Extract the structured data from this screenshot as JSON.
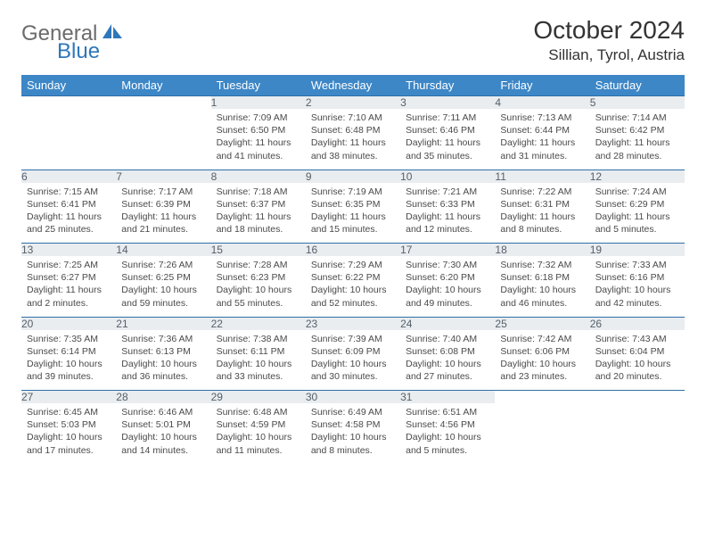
{
  "brand": {
    "general": "General",
    "blue": "Blue"
  },
  "title": "October 2024",
  "location": "Sillian, Tyrol, Austria",
  "colors": {
    "header_bg": "#3d87c7",
    "header_text": "#ffffff",
    "rule": "#2f6fa8",
    "daynum_bg": "#e9edf0",
    "daynum_text": "#56606a",
    "body_text": "#4a4a4a",
    "logo_gray": "#6b6b6b",
    "logo_blue": "#2f77b9"
  },
  "fonts": {
    "title_pt": 28,
    "location_pt": 17,
    "weekday_pt": 13,
    "daynum_pt": 12,
    "body_pt": 10.5
  },
  "weekdays": [
    "Sunday",
    "Monday",
    "Tuesday",
    "Wednesday",
    "Thursday",
    "Friday",
    "Saturday"
  ],
  "weeks": [
    [
      null,
      null,
      {
        "n": "1",
        "sr": "7:09 AM",
        "ss": "6:50 PM",
        "dl": "11 hours and 41 minutes."
      },
      {
        "n": "2",
        "sr": "7:10 AM",
        "ss": "6:48 PM",
        "dl": "11 hours and 38 minutes."
      },
      {
        "n": "3",
        "sr": "7:11 AM",
        "ss": "6:46 PM",
        "dl": "11 hours and 35 minutes."
      },
      {
        "n": "4",
        "sr": "7:13 AM",
        "ss": "6:44 PM",
        "dl": "11 hours and 31 minutes."
      },
      {
        "n": "5",
        "sr": "7:14 AM",
        "ss": "6:42 PM",
        "dl": "11 hours and 28 minutes."
      }
    ],
    [
      {
        "n": "6",
        "sr": "7:15 AM",
        "ss": "6:41 PM",
        "dl": "11 hours and 25 minutes."
      },
      {
        "n": "7",
        "sr": "7:17 AM",
        "ss": "6:39 PM",
        "dl": "11 hours and 21 minutes."
      },
      {
        "n": "8",
        "sr": "7:18 AM",
        "ss": "6:37 PM",
        "dl": "11 hours and 18 minutes."
      },
      {
        "n": "9",
        "sr": "7:19 AM",
        "ss": "6:35 PM",
        "dl": "11 hours and 15 minutes."
      },
      {
        "n": "10",
        "sr": "7:21 AM",
        "ss": "6:33 PM",
        "dl": "11 hours and 12 minutes."
      },
      {
        "n": "11",
        "sr": "7:22 AM",
        "ss": "6:31 PM",
        "dl": "11 hours and 8 minutes."
      },
      {
        "n": "12",
        "sr": "7:24 AM",
        "ss": "6:29 PM",
        "dl": "11 hours and 5 minutes."
      }
    ],
    [
      {
        "n": "13",
        "sr": "7:25 AM",
        "ss": "6:27 PM",
        "dl": "11 hours and 2 minutes."
      },
      {
        "n": "14",
        "sr": "7:26 AM",
        "ss": "6:25 PM",
        "dl": "10 hours and 59 minutes."
      },
      {
        "n": "15",
        "sr": "7:28 AM",
        "ss": "6:23 PM",
        "dl": "10 hours and 55 minutes."
      },
      {
        "n": "16",
        "sr": "7:29 AM",
        "ss": "6:22 PM",
        "dl": "10 hours and 52 minutes."
      },
      {
        "n": "17",
        "sr": "7:30 AM",
        "ss": "6:20 PM",
        "dl": "10 hours and 49 minutes."
      },
      {
        "n": "18",
        "sr": "7:32 AM",
        "ss": "6:18 PM",
        "dl": "10 hours and 46 minutes."
      },
      {
        "n": "19",
        "sr": "7:33 AM",
        "ss": "6:16 PM",
        "dl": "10 hours and 42 minutes."
      }
    ],
    [
      {
        "n": "20",
        "sr": "7:35 AM",
        "ss": "6:14 PM",
        "dl": "10 hours and 39 minutes."
      },
      {
        "n": "21",
        "sr": "7:36 AM",
        "ss": "6:13 PM",
        "dl": "10 hours and 36 minutes."
      },
      {
        "n": "22",
        "sr": "7:38 AM",
        "ss": "6:11 PM",
        "dl": "10 hours and 33 minutes."
      },
      {
        "n": "23",
        "sr": "7:39 AM",
        "ss": "6:09 PM",
        "dl": "10 hours and 30 minutes."
      },
      {
        "n": "24",
        "sr": "7:40 AM",
        "ss": "6:08 PM",
        "dl": "10 hours and 27 minutes."
      },
      {
        "n": "25",
        "sr": "7:42 AM",
        "ss": "6:06 PM",
        "dl": "10 hours and 23 minutes."
      },
      {
        "n": "26",
        "sr": "7:43 AM",
        "ss": "6:04 PM",
        "dl": "10 hours and 20 minutes."
      }
    ],
    [
      {
        "n": "27",
        "sr": "6:45 AM",
        "ss": "5:03 PM",
        "dl": "10 hours and 17 minutes."
      },
      {
        "n": "28",
        "sr": "6:46 AM",
        "ss": "5:01 PM",
        "dl": "10 hours and 14 minutes."
      },
      {
        "n": "29",
        "sr": "6:48 AM",
        "ss": "4:59 PM",
        "dl": "10 hours and 11 minutes."
      },
      {
        "n": "30",
        "sr": "6:49 AM",
        "ss": "4:58 PM",
        "dl": "10 hours and 8 minutes."
      },
      {
        "n": "31",
        "sr": "6:51 AM",
        "ss": "4:56 PM",
        "dl": "10 hours and 5 minutes."
      },
      null,
      null
    ]
  ],
  "labels": {
    "sunrise": "Sunrise:",
    "sunset": "Sunset:",
    "daylight": "Daylight:"
  }
}
